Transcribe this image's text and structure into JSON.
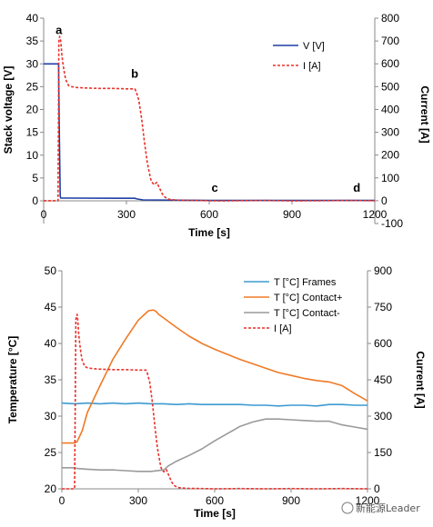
{
  "chart_data": [
    {
      "type": "line",
      "xlabel": "Time [s]",
      "ylabel": "Stack voltage [V]",
      "y2label": "Current [A]",
      "xlim": [
        0,
        1200
      ],
      "ylim": [
        0,
        40
      ],
      "y2lim": [
        -100,
        800
      ],
      "xticks": [
        "0",
        "300",
        "600",
        "900",
        "1200"
      ],
      "yticks": [
        "0",
        "5",
        "10",
        "15",
        "20",
        "25",
        "30",
        "35",
        "40"
      ],
      "y2ticks": [
        "-100",
        "0",
        "100",
        "200",
        "300",
        "400",
        "500",
        "600",
        "700",
        "800"
      ],
      "grid": false,
      "legend_position": "top-right",
      "annotations": [
        {
          "text": "a",
          "x": 55,
          "y": 36.5
        },
        {
          "text": "b",
          "x": 330,
          "y": 27
        },
        {
          "text": "c",
          "x": 620,
          "y": 2
        },
        {
          "text": "d",
          "x": 1135,
          "y": 2
        }
      ],
      "series": [
        {
          "name": "V [V]",
          "axis": "left",
          "color": "#1f3fa6",
          "style": "solid",
          "x": [
            0,
            54,
            56,
            60,
            62,
            100,
            300,
            330,
            340,
            360,
            600,
            1200
          ],
          "y": [
            30,
            30,
            18,
            1,
            0.6,
            0.6,
            0.55,
            0.55,
            0.4,
            0.2,
            0.1,
            0.1
          ]
        },
        {
          "name": "I [A]",
          "axis": "right",
          "color": "#e8312a",
          "style": "dashed",
          "x": [
            0,
            52,
            55,
            58,
            62,
            66,
            70,
            75,
            80,
            90,
            100,
            120,
            150,
            200,
            250,
            300,
            320,
            330,
            335,
            345,
            355,
            365,
            375,
            385,
            390,
            400,
            410,
            420,
            430,
            440,
            450,
            460,
            480,
            500,
            550,
            600,
            650,
            700,
            800,
            900,
            1000,
            1100,
            1200
          ],
          "y": [
            0,
            0,
            700,
            720,
            700,
            640,
            600,
            560,
            530,
            505,
            500,
            496,
            494,
            492,
            492,
            490,
            490,
            490,
            480,
            440,
            360,
            260,
            170,
            110,
            85,
            70,
            80,
            55,
            30,
            15,
            8,
            5,
            3,
            2,
            1,
            0,
            -1,
            0,
            1,
            -1,
            0,
            1,
            0
          ]
        }
      ]
    },
    {
      "type": "line",
      "xlabel": "Time [s]",
      "ylabel": "Temperature [°C]",
      "y2label": "Current [A]",
      "xlim": [
        0,
        1200
      ],
      "ylim": [
        20,
        50
      ],
      "y2lim": [
        0,
        900
      ],
      "xticks": [
        "0",
        "300",
        "600",
        "900",
        "1200"
      ],
      "yticks": [
        "20",
        "25",
        "30",
        "35",
        "40",
        "45",
        "50"
      ],
      "y2ticks": [
        "0",
        "150",
        "300",
        "450",
        "600",
        "750",
        "900"
      ],
      "grid": false,
      "legend_position": "top-right",
      "series": [
        {
          "name": "T [°C] Frames",
          "axis": "left",
          "color": "#3d9ad1",
          "style": "solid",
          "x": [
            0,
            50,
            100,
            150,
            200,
            250,
            300,
            350,
            400,
            450,
            500,
            550,
            600,
            650,
            700,
            750,
            800,
            850,
            900,
            950,
            1000,
            1050,
            1100,
            1150,
            1200
          ],
          "y": [
            31.8,
            31.7,
            31.8,
            31.7,
            31.8,
            31.7,
            31.8,
            31.7,
            31.7,
            31.6,
            31.7,
            31.6,
            31.6,
            31.6,
            31.6,
            31.5,
            31.5,
            31.4,
            31.5,
            31.5,
            31.4,
            31.6,
            31.6,
            31.5,
            31.5
          ]
        },
        {
          "name": "T [°C] Contact+",
          "axis": "left",
          "color": "#ef7a26",
          "style": "solid",
          "x": [
            0,
            50,
            60,
            80,
            100,
            150,
            200,
            250,
            300,
            340,
            360,
            370,
            380,
            400,
            450,
            500,
            550,
            600,
            650,
            700,
            750,
            800,
            850,
            900,
            950,
            1000,
            1050,
            1100,
            1150,
            1200
          ],
          "y": [
            26.3,
            26.3,
            26.5,
            28,
            30.5,
            34.2,
            37.8,
            40.6,
            43.2,
            44.5,
            44.6,
            44.4,
            44,
            43.5,
            42.2,
            41,
            40,
            39.2,
            38.5,
            37.8,
            37.2,
            36.6,
            36,
            35.6,
            35.2,
            34.9,
            34.7,
            34.2,
            33.1,
            32.1
          ]
        },
        {
          "name": "T [°C] Contact-",
          "axis": "left",
          "color": "#9a9a9a",
          "style": "solid",
          "x": [
            0,
            50,
            60,
            100,
            150,
            200,
            250,
            300,
            350,
            400,
            420,
            450,
            500,
            550,
            600,
            650,
            700,
            750,
            800,
            850,
            900,
            950,
            1000,
            1050,
            1100,
            1150,
            1200
          ],
          "y": [
            22.9,
            22.9,
            22.8,
            22.7,
            22.6,
            22.6,
            22.5,
            22.4,
            22.4,
            22.6,
            23.2,
            23.8,
            24.6,
            25.5,
            26.6,
            27.6,
            28.6,
            29.2,
            29.6,
            29.6,
            29.5,
            29.4,
            29.3,
            29.3,
            28.8,
            28.5,
            28.2
          ]
        },
        {
          "name": "I [A]",
          "axis": "right",
          "color": "#e8312a",
          "style": "dashed",
          "x": [
            0,
            50,
            55,
            60,
            62,
            66,
            70,
            75,
            80,
            90,
            100,
            120,
            150,
            200,
            250,
            300,
            320,
            330,
            335,
            345,
            355,
            365,
            375,
            385,
            390,
            400,
            410,
            420,
            430,
            440,
            450,
            460,
            480,
            500,
            550,
            600,
            700,
            800,
            900,
            1000,
            1100,
            1200
          ],
          "y": [
            0,
            0,
            700,
            720,
            700,
            640,
            600,
            560,
            530,
            505,
            500,
            496,
            494,
            492,
            492,
            490,
            490,
            490,
            480,
            440,
            360,
            260,
            170,
            110,
            85,
            70,
            80,
            55,
            30,
            15,
            8,
            5,
            3,
            2,
            1,
            0,
            1,
            0,
            1,
            0,
            1,
            0
          ]
        }
      ]
    }
  ],
  "watermark": "新能源Leader"
}
